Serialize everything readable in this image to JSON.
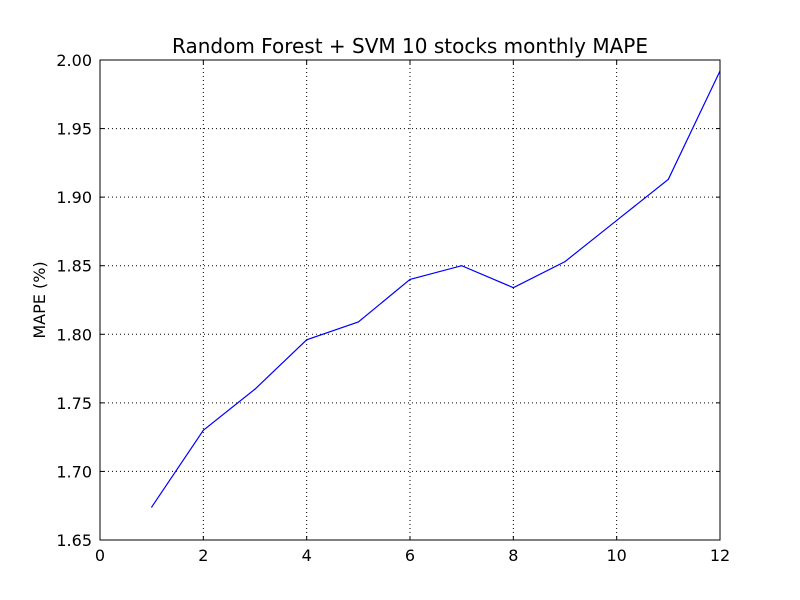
{
  "chart_data": {
    "type": "line",
    "title": "Random Forest + SVM 10 stocks monthly MAPE",
    "xlabel": "",
    "ylabel": "MAPE (%)",
    "xlim": [
      0,
      12
    ],
    "ylim": [
      1.65,
      2.0
    ],
    "xticks": [
      0,
      2,
      4,
      6,
      8,
      10,
      12
    ],
    "xtick_labels": [
      "0",
      "2",
      "4",
      "6",
      "8",
      "10",
      "12"
    ],
    "yticks": [
      1.65,
      1.7,
      1.75,
      1.8,
      1.85,
      1.9,
      1.95,
      2.0
    ],
    "ytick_labels": [
      "1.65",
      "1.70",
      "1.75",
      "1.80",
      "1.85",
      "1.90",
      "1.95",
      "2.00"
    ],
    "grid": true,
    "series": [
      {
        "color": "#0000ff",
        "x": [
          1,
          2,
          3,
          4,
          5,
          6,
          7,
          8,
          9,
          10,
          11,
          12
        ],
        "values": [
          1.674,
          1.73,
          1.76,
          1.796,
          1.809,
          1.84,
          1.85,
          1.834,
          1.853,
          1.883,
          1.913,
          1.992
        ]
      }
    ]
  }
}
